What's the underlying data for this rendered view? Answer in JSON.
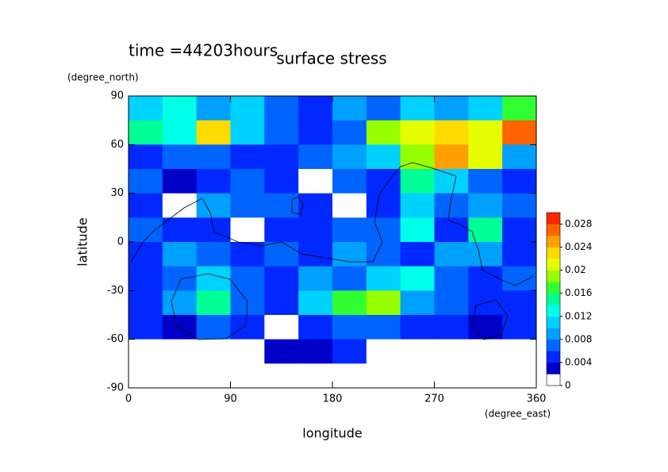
{
  "chart_data": {
    "type": "contour",
    "title": "surface stress",
    "annotation": "time =44203hours",
    "x_label": "longitude",
    "x_unit": "(degree_east)",
    "y_label": "latitude",
    "y_unit": "(degree_north)",
    "xlim": [
      0,
      360
    ],
    "xticks": [
      0,
      90,
      180,
      270,
      360
    ],
    "ylim": [
      -90,
      90
    ],
    "yticks": [
      -90,
      -60,
      -30,
      0,
      30,
      60,
      90
    ],
    "x": [
      15,
      45,
      75,
      105,
      135,
      165,
      195,
      225,
      255,
      285,
      315,
      345
    ],
    "y": [
      82.5,
      67.5,
      52.5,
      37.5,
      22.5,
      7.5,
      -7.5,
      -22.5,
      -37.5,
      -52.5,
      -67.5,
      -82.5
    ],
    "z": [
      [
        0.01,
        0.012,
        0.008,
        0.01,
        0.006,
        0.004,
        0.008,
        0.006,
        0.01,
        0.008,
        0.01,
        0.016
      ],
      [
        0.014,
        0.012,
        0.022,
        0.01,
        0.006,
        0.004,
        0.006,
        0.018,
        0.02,
        0.022,
        0.02,
        0.026
      ],
      [
        0.004,
        0.006,
        0.006,
        0.004,
        0.004,
        0.006,
        0.008,
        0.01,
        0.018,
        0.024,
        0.02,
        0.008
      ],
      [
        0.006,
        0.002,
        0.004,
        0.006,
        0.004,
        0,
        0.006,
        0.004,
        0.014,
        0.01,
        0.006,
        0.004
      ],
      [
        0.004,
        0,
        0.008,
        0.006,
        0.006,
        0.004,
        0,
        0.004,
        0.01,
        0.006,
        0.008,
        0.006
      ],
      [
        0.006,
        0.004,
        0.004,
        0,
        0.004,
        0.004,
        0.006,
        0.006,
        0.012,
        0.004,
        0.014,
        0.004
      ],
      [
        0.004,
        0.008,
        0.006,
        0.004,
        0.006,
        0.004,
        0.008,
        0.006,
        0.004,
        0.008,
        0.008,
        0.004
      ],
      [
        0.004,
        0.006,
        0.01,
        0.006,
        0.004,
        0.008,
        0.006,
        0.01,
        0.012,
        0.006,
        0.004,
        0.006
      ],
      [
        0.004,
        0.008,
        0.014,
        0.006,
        0.004,
        0.01,
        0.016,
        0.018,
        0.008,
        0.006,
        0.004,
        0.004
      ],
      [
        0.004,
        0.002,
        0.006,
        0.004,
        0,
        0.004,
        0.006,
        0.006,
        0.004,
        0.004,
        0.002,
        0.004
      ],
      [
        0,
        0,
        0,
        0,
        0.002,
        0.002,
        0.004,
        0,
        0,
        0,
        0,
        0
      ],
      [
        0,
        0,
        0,
        0,
        0,
        0,
        0,
        0,
        0,
        0,
        0,
        0
      ]
    ],
    "levels": [
      0,
      0.002,
      0.004,
      0.006,
      0.008,
      0.01,
      0.012,
      0.014,
      0.016,
      0.018,
      0.02,
      0.022,
      0.024,
      0.026,
      0.028,
      0.03
    ],
    "colors": [
      "#ffffff",
      "#0000c8",
      "#0028ff",
      "#0064ff",
      "#00a0ff",
      "#00d2ff",
      "#00ffe6",
      "#00ff96",
      "#32ff32",
      "#96ff00",
      "#e6ff00",
      "#ffdc00",
      "#ffa000",
      "#ff6400",
      "#ff2800"
    ],
    "colorbar_ticks": [
      0,
      0.004,
      0.008,
      0.012,
      0.016,
      0.02,
      0.024,
      0.028
    ]
  }
}
